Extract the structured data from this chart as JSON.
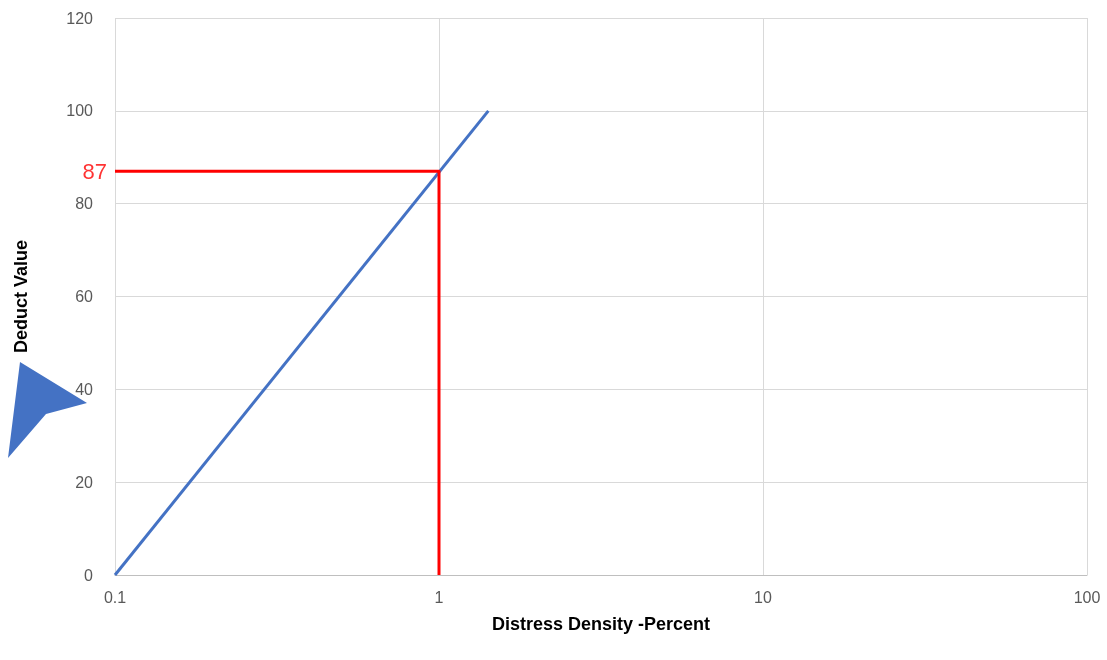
{
  "chart_data": {
    "type": "line",
    "xlabel": "Distress Density -Percent",
    "ylabel": "Deduct Value",
    "series": [
      {
        "color": "#4472c4",
        "x": [
          0.1,
          1.42
        ],
        "values": [
          0,
          100
        ]
      },
      {
        "color": "#ff0000",
        "x": [
          0.1,
          1,
          1
        ],
        "values": [
          87,
          87,
          0
        ]
      }
    ],
    "annotations": [
      {
        "text": "87",
        "x": 0.1,
        "y": 87
      }
    ],
    "log": "x",
    "xlim": [
      0.1,
      100
    ],
    "xticks": [
      0.1,
      1,
      10,
      100
    ],
    "ylim": [
      0,
      120
    ],
    "yticks": [
      0,
      20,
      40,
      60,
      80,
      100,
      120
    ],
    "grid": true,
    "marker": "none",
    "line_style": "solid"
  }
}
